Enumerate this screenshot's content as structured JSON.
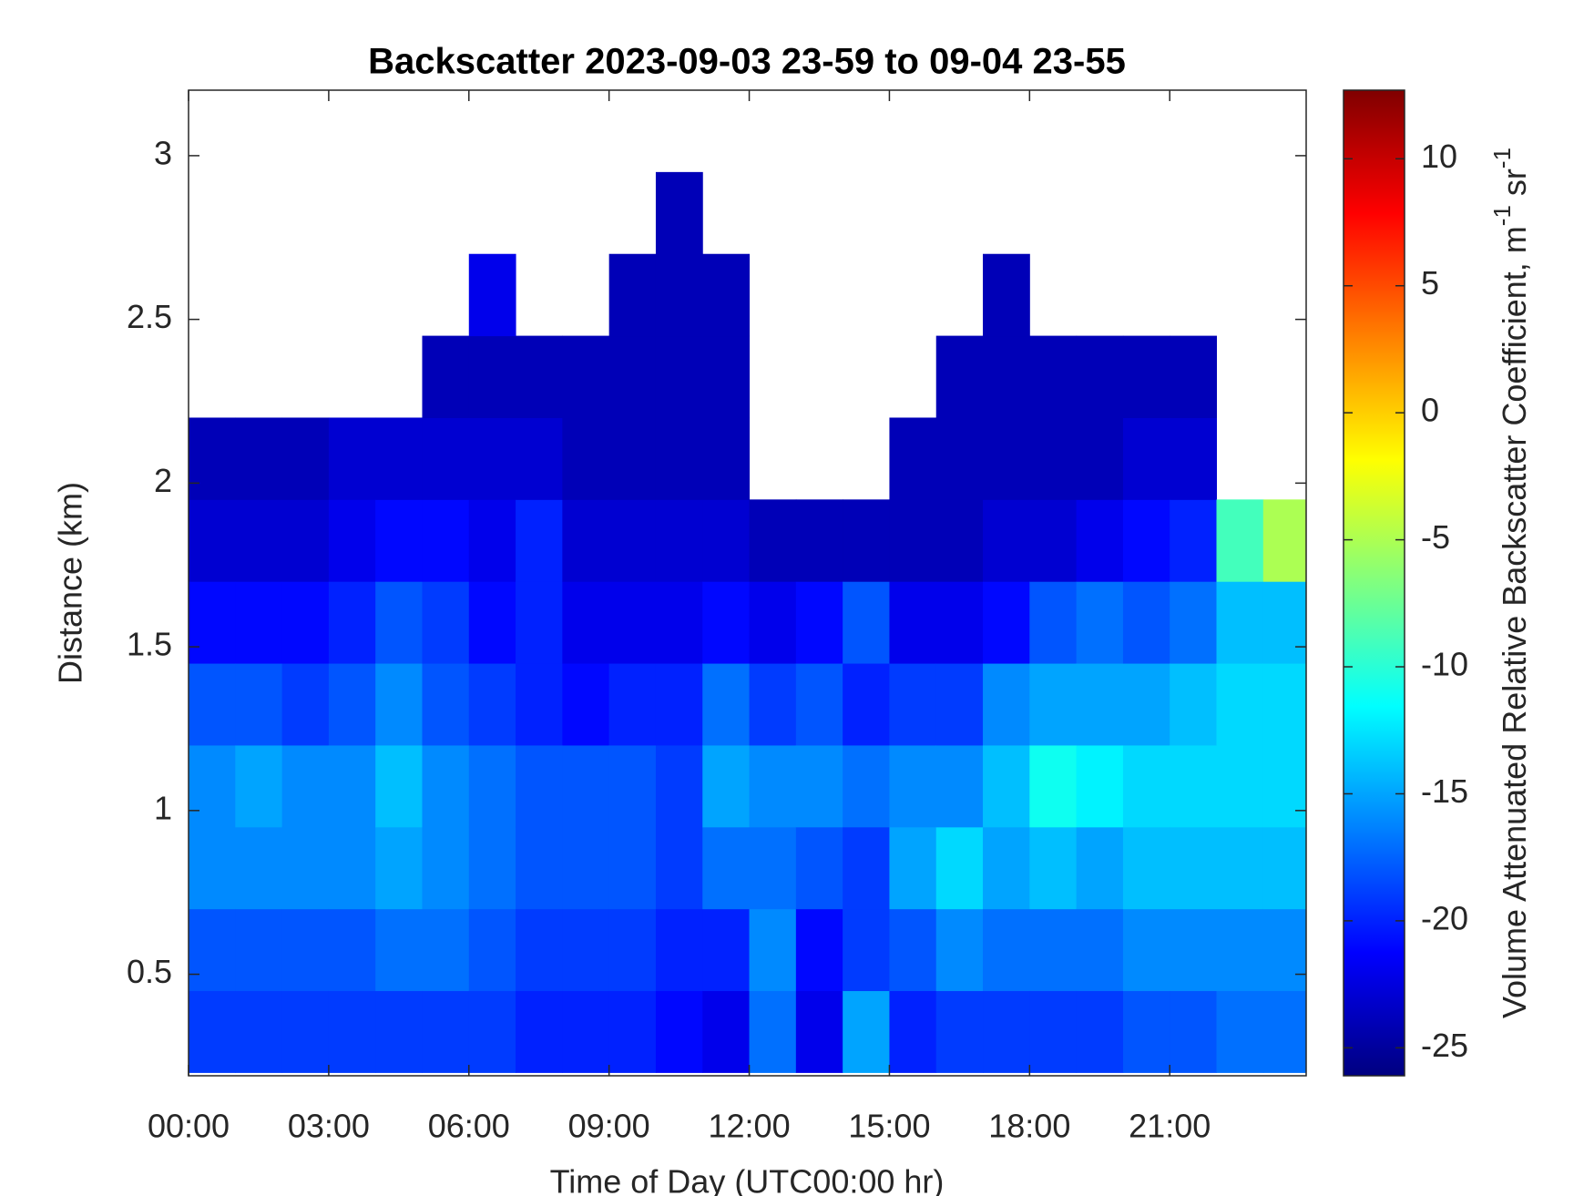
{
  "chart_data": {
    "type": "heatmap",
    "title": "Backscatter 2023-09-03 23-59 to 09-04 23-55",
    "x_label": "Time of Day (UTC00:00 hr)",
    "y_label": "Distance (km)",
    "colorbar_label": [
      "Volume Attenuated Relative Backscatter Coefficient, m",
      "-1",
      " sr",
      "-1"
    ],
    "colormap": "jet",
    "x": [
      0.5,
      1.5,
      2.5,
      3.5,
      4.5,
      5.5,
      6.5,
      7.5,
      8.5,
      9.5,
      10.5,
      11.5,
      12.5,
      13.5,
      14.5,
      15.5,
      16.5,
      17.5,
      18.5,
      19.5,
      20.5,
      21.5,
      22.5,
      23.5
    ],
    "y": [
      0.325,
      0.575,
      0.825,
      1.075,
      1.325,
      1.575,
      1.825,
      2.075,
      2.325,
      2.575,
      2.825,
      3.075
    ],
    "z": [
      [
        -19,
        -18,
        -16,
        -16,
        -18,
        -21,
        -23,
        -24,
        null,
        null,
        null,
        null
      ],
      [
        -19,
        -18,
        -16,
        -15,
        -18,
        -21,
        -23,
        -24,
        null,
        null,
        null,
        null
      ],
      [
        -19,
        -18,
        -16,
        -16,
        -19,
        -21,
        -23,
        -24,
        null,
        null,
        null,
        null
      ],
      [
        -19,
        -18,
        -16,
        -16,
        -18,
        -20,
        -22,
        -23,
        null,
        null,
        null,
        null
      ],
      [
        -19,
        -17,
        -15,
        -14,
        -16,
        -18,
        -21,
        -23,
        null,
        null,
        null,
        null
      ],
      [
        -19,
        -17,
        -16,
        -16,
        -18,
        -19,
        -21,
        -23,
        -24,
        null,
        null,
        null
      ],
      [
        -19,
        -18,
        -17,
        -17,
        -19,
        -21,
        -22,
        -23,
        -24,
        -22,
        null,
        null
      ],
      [
        -20,
        -19,
        -18,
        -18,
        -20,
        -20,
        -20,
        -23,
        -24,
        null,
        null,
        null
      ],
      [
        -20,
        -19,
        -18,
        -18,
        -21,
        -22,
        -23,
        -24,
        -24,
        null,
        null,
        null
      ],
      [
        -20,
        -19,
        -18,
        -18,
        -20,
        -22,
        -23,
        -24,
        -24,
        -24,
        null,
        null
      ],
      [
        -21,
        -20,
        -19,
        -19,
        -20,
        -22,
        -23,
        -24,
        -24,
        -24,
        -24,
        null
      ],
      [
        -22,
        -20,
        -17,
        -15,
        -17,
        -21,
        -23,
        -24,
        -24,
        -24,
        null,
        null
      ],
      [
        -17,
        -16,
        -17,
        -16,
        -19,
        -22,
        -24,
        null,
        null,
        null,
        null,
        null
      ],
      [
        -22,
        -21,
        -18,
        -16,
        -18,
        -21,
        -24,
        null,
        null,
        null,
        null,
        null
      ],
      [
        -15,
        -19,
        -19,
        -17,
        -20,
        -18,
        -24,
        null,
        null,
        null,
        null,
        null
      ],
      [
        -20,
        -18,
        -15,
        -16,
        -19,
        -22,
        -24,
        -24,
        null,
        null,
        null,
        null
      ],
      [
        -19,
        -16,
        -13,
        -16,
        -19,
        -22,
        -24,
        -24,
        -24,
        null,
        null,
        null
      ],
      [
        -19,
        -17,
        -15,
        -14,
        -16,
        -21,
        -23,
        -24,
        -24,
        -24,
        null,
        null
      ],
      [
        -19,
        -17,
        -14,
        -11,
        -15,
        -18,
        -23,
        -24,
        -24,
        null,
        null,
        null
      ],
      [
        -19,
        -17,
        -15,
        -12,
        -15,
        -17,
        -22,
        -24,
        -24,
        null,
        null,
        null
      ],
      [
        -18,
        -16,
        -14,
        -13,
        -15,
        -18,
        -21,
        -23,
        -24,
        null,
        null,
        null
      ],
      [
        -18,
        -16,
        -14,
        -13,
        -14,
        -17,
        -20,
        -23,
        -24,
        null,
        null,
        null
      ],
      [
        -17,
        -16,
        -14,
        -13,
        -13,
        -14,
        -9,
        null,
        null,
        null,
        null,
        null
      ],
      [
        -17,
        -16,
        -14,
        -13,
        -13,
        -14,
        -5,
        null,
        null,
        null,
        null,
        null
      ]
    ],
    "xlim": [
      0,
      23.92
    ],
    "ylim": [
      0.19,
      3.2
    ],
    "xticks": [
      {
        "value": 0,
        "label": "00:00"
      },
      {
        "value": 3,
        "label": "03:00"
      },
      {
        "value": 6,
        "label": "06:00"
      },
      {
        "value": 9,
        "label": "09:00"
      },
      {
        "value": 12,
        "label": "12:00"
      },
      {
        "value": 15,
        "label": "15:00"
      },
      {
        "value": 18,
        "label": "18:00"
      },
      {
        "value": 21,
        "label": "21:00"
      }
    ],
    "yticks": [
      0.5,
      1,
      1.5,
      2,
      2.5,
      3
    ],
    "clim": [
      -26.1,
      12.7
    ],
    "cticks": [
      -25,
      -20,
      -15,
      -10,
      -5,
      0,
      5,
      10
    ]
  }
}
